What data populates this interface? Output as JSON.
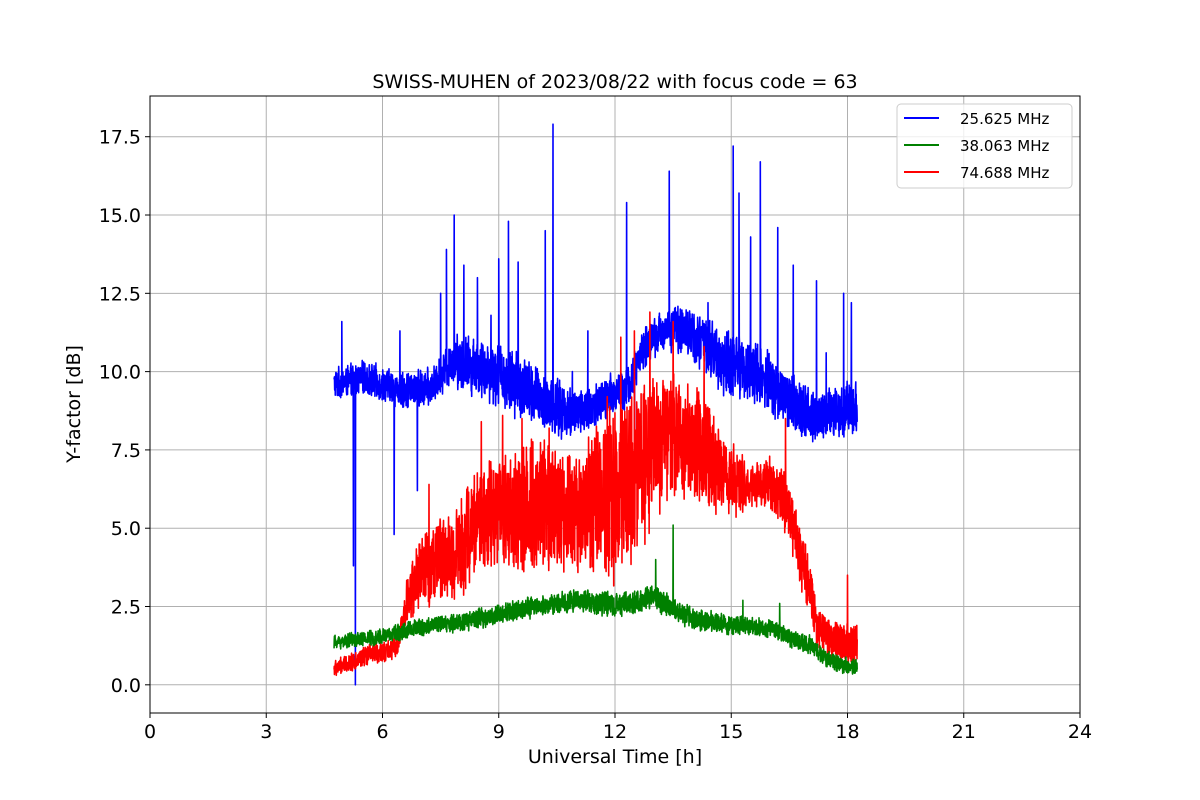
{
  "chart_data": {
    "type": "line",
    "title": "SWISS-MUHEN of 2023/08/22 with focus code = 63",
    "xlabel": "Universal Time [h]",
    "ylabel": "Y-factor [dB]",
    "xlim": [
      0,
      24
    ],
    "ylim": [
      -0.9,
      18.8
    ],
    "xticks": [
      0,
      3,
      6,
      9,
      12,
      15,
      18,
      21,
      24
    ],
    "yticks": [
      0.0,
      2.5,
      5.0,
      7.5,
      10.0,
      12.5,
      15.0,
      17.5
    ],
    "xtick_labels": [
      "0",
      "3",
      "6",
      "9",
      "12",
      "15",
      "18",
      "21",
      "24"
    ],
    "ytick_labels": [
      "0.0",
      "2.5",
      "5.0",
      "7.5",
      "10.0",
      "12.5",
      "15.0",
      "17.5"
    ],
    "grid": true,
    "legend_position": "top-right",
    "series": [
      {
        "name": "25.625 MHz",
        "color": "#0000ff",
        "x_start": 4.75,
        "x_end": 18.25,
        "baseline": [
          [
            4.75,
            9.6
          ],
          [
            5.5,
            9.8
          ],
          [
            6.5,
            9.4
          ],
          [
            7.3,
            9.5
          ],
          [
            7.8,
            10.4
          ],
          [
            8.3,
            10.2
          ],
          [
            9.0,
            9.9
          ],
          [
            9.6,
            9.5
          ],
          [
            10.2,
            9.0
          ],
          [
            10.8,
            8.7
          ],
          [
            11.4,
            8.8
          ],
          [
            12.0,
            9.3
          ],
          [
            12.4,
            9.6
          ],
          [
            12.7,
            10.7
          ],
          [
            13.2,
            11.3
          ],
          [
            13.7,
            11.4
          ],
          [
            14.2,
            11.0
          ],
          [
            14.7,
            10.4
          ],
          [
            15.3,
            10.2
          ],
          [
            15.8,
            9.8
          ],
          [
            16.3,
            9.3
          ],
          [
            16.8,
            8.8
          ],
          [
            17.3,
            8.6
          ],
          [
            17.8,
            8.7
          ],
          [
            18.25,
            8.9
          ]
        ],
        "noise_amplitude": [
          [
            4.75,
            0.55
          ],
          [
            7.5,
            0.7
          ],
          [
            8.0,
            1.0
          ],
          [
            9.5,
            1.2
          ],
          [
            11.0,
            0.9
          ],
          [
            13.0,
            0.7
          ],
          [
            15.0,
            1.2
          ],
          [
            17.0,
            1.0
          ],
          [
            18.25,
            0.9
          ]
        ],
        "spikes": [
          [
            4.95,
            11.6
          ],
          [
            5.3,
            0.0
          ],
          [
            5.25,
            3.8
          ],
          [
            6.3,
            4.8
          ],
          [
            6.45,
            11.3
          ],
          [
            6.9,
            6.2
          ],
          [
            7.5,
            12.5
          ],
          [
            7.65,
            13.9
          ],
          [
            7.85,
            15.0
          ],
          [
            8.1,
            13.4
          ],
          [
            8.45,
            13.0
          ],
          [
            8.8,
            11.8
          ],
          [
            9.0,
            13.6
          ],
          [
            9.25,
            14.8
          ],
          [
            9.5,
            13.5
          ],
          [
            10.2,
            14.5
          ],
          [
            10.4,
            17.9
          ],
          [
            10.9,
            10.0
          ],
          [
            11.3,
            11.3
          ],
          [
            12.3,
            15.4
          ],
          [
            12.5,
            5.0
          ],
          [
            13.4,
            16.4
          ],
          [
            14.4,
            12.2
          ],
          [
            15.05,
            17.2
          ],
          [
            15.2,
            15.7
          ],
          [
            15.5,
            14.3
          ],
          [
            15.75,
            16.7
          ],
          [
            16.2,
            14.6
          ],
          [
            16.6,
            13.4
          ],
          [
            17.2,
            12.9
          ],
          [
            17.45,
            10.6
          ],
          [
            17.9,
            12.5
          ],
          [
            18.1,
            12.2
          ]
        ]
      },
      {
        "name": "38.063 MHz",
        "color": "#008000",
        "x_start": 4.75,
        "x_end": 18.25,
        "baseline": [
          [
            4.75,
            1.35
          ],
          [
            6.0,
            1.55
          ],
          [
            7.0,
            1.85
          ],
          [
            8.0,
            2.0
          ],
          [
            9.0,
            2.25
          ],
          [
            10.0,
            2.5
          ],
          [
            11.0,
            2.7
          ],
          [
            12.0,
            2.55
          ],
          [
            12.5,
            2.6
          ],
          [
            13.0,
            2.85
          ],
          [
            13.5,
            2.4
          ],
          [
            14.0,
            2.1
          ],
          [
            15.0,
            1.9
          ],
          [
            16.0,
            1.8
          ],
          [
            16.5,
            1.5
          ],
          [
            17.0,
            1.3
          ],
          [
            17.5,
            0.8
          ],
          [
            18.0,
            0.6
          ],
          [
            18.25,
            0.55
          ]
        ],
        "noise_amplitude": [
          [
            4.75,
            0.25
          ],
          [
            8.0,
            0.35
          ],
          [
            11.0,
            0.4
          ],
          [
            13.0,
            0.45
          ],
          [
            15.0,
            0.35
          ],
          [
            18.25,
            0.3
          ]
        ],
        "spikes": [
          [
            13.5,
            5.1
          ],
          [
            13.05,
            4.0
          ],
          [
            15.3,
            2.7
          ],
          [
            16.25,
            2.6
          ]
        ]
      },
      {
        "name": "74.688 MHz",
        "color": "#ff0000",
        "x_start": 4.75,
        "x_end": 18.25,
        "baseline": [
          [
            4.75,
            0.5
          ],
          [
            5.5,
            0.9
          ],
          [
            6.4,
            1.2
          ],
          [
            6.6,
            2.6
          ],
          [
            7.0,
            3.6
          ],
          [
            7.5,
            4.0
          ],
          [
            8.0,
            4.3
          ],
          [
            8.5,
            5.3
          ],
          [
            9.0,
            5.6
          ],
          [
            9.5,
            5.4
          ],
          [
            10.0,
            5.8
          ],
          [
            10.5,
            5.6
          ],
          [
            11.0,
            5.4
          ],
          [
            11.5,
            6.0
          ],
          [
            12.0,
            6.3
          ],
          [
            12.5,
            6.6
          ],
          [
            13.0,
            7.6
          ],
          [
            13.5,
            7.9
          ],
          [
            14.0,
            7.6
          ],
          [
            14.5,
            7.2
          ],
          [
            15.0,
            6.5
          ],
          [
            15.5,
            6.4
          ],
          [
            16.0,
            6.5
          ],
          [
            16.5,
            5.6
          ],
          [
            16.8,
            3.9
          ],
          [
            17.0,
            3.4
          ],
          [
            17.2,
            1.9
          ],
          [
            17.6,
            1.4
          ],
          [
            18.25,
            1.3
          ]
        ],
        "noise_amplitude": [
          [
            4.75,
            0.3
          ],
          [
            6.4,
            0.4
          ],
          [
            7.0,
            1.4
          ],
          [
            8.0,
            1.8
          ],
          [
            9.0,
            2.2
          ],
          [
            10.0,
            2.3
          ],
          [
            11.0,
            2.0
          ],
          [
            12.0,
            3.3
          ],
          [
            12.5,
            3.0
          ],
          [
            13.5,
            2.4
          ],
          [
            14.5,
            1.8
          ],
          [
            15.5,
            0.8
          ],
          [
            16.3,
            1.0
          ],
          [
            16.8,
            1.2
          ],
          [
            17.3,
            0.7
          ],
          [
            18.25,
            0.8
          ]
        ],
        "spikes": [
          [
            7.2,
            6.4
          ],
          [
            8.55,
            8.4
          ],
          [
            9.1,
            8.6
          ],
          [
            9.6,
            8.5
          ],
          [
            10.3,
            8.2
          ],
          [
            11.0,
            7.2
          ],
          [
            11.8,
            9.2
          ],
          [
            12.15,
            11.1
          ],
          [
            12.5,
            11.3
          ],
          [
            12.9,
            11.9
          ],
          [
            13.5,
            11.6
          ],
          [
            14.3,
            10.8
          ],
          [
            16.4,
            8.5
          ],
          [
            18.0,
            3.5
          ]
        ]
      }
    ]
  }
}
